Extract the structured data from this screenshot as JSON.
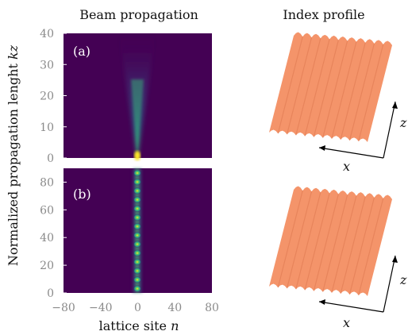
{
  "titles": {
    "left": "Beam propagation",
    "right": "Index profile"
  },
  "labels": {
    "y_axis": "Normalized propagation lenght ",
    "y_axis_var": "kz",
    "x_axis": "lattice site ",
    "x_axis_var": "n",
    "panel_a": "(a)",
    "panel_b": "(b)",
    "axis_z": "z",
    "axis_x": "x"
  },
  "colors": {
    "background_field": "#440154",
    "surface": "#f4946a"
  },
  "chart_data": [
    {
      "type": "heatmap",
      "name": "Panel (a): diffracting beam",
      "xlim": [
        -80,
        80
      ],
      "ylim": [
        0,
        40
      ],
      "yticks": [
        "0",
        "10",
        "20",
        "30",
        "40"
      ],
      "xticks": [],
      "description": "Beam launched at n=0 spreading in a cone as kz increases"
    },
    {
      "type": "heatmap",
      "name": "Panel (b): localized beam",
      "xlim": [
        -80,
        80
      ],
      "ylim": [
        0,
        90
      ],
      "yticks": [
        "0",
        "20",
        "40",
        "60",
        "80"
      ],
      "xticks": [
        "−80",
        "−40",
        "0",
        "40",
        "80"
      ],
      "description": "Beam stays localized near n=0 with periodic breathing"
    }
  ]
}
